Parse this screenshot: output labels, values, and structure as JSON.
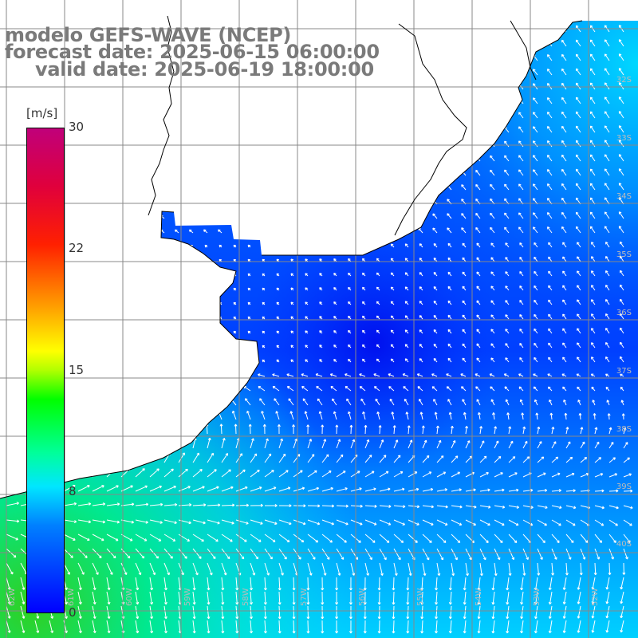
{
  "title": {
    "line1": "modelo GEFS-WAVE (NCEP)",
    "line2": "forecast date: 2025-06-15 06:00:00",
    "line3": "valid date: 2025-06-19 18:00:00"
  },
  "colorbar": {
    "unit": "[m/s]",
    "ticks": [
      "30",
      "22",
      "15",
      "8",
      "0"
    ],
    "tick_values": [
      30,
      22,
      15,
      8,
      0
    ],
    "range": [
      0,
      30
    ],
    "colors": [
      "#0000ff",
      "#0080ff",
      "#00e6ff",
      "#00ff9a",
      "#00ff00",
      "#ffff00",
      "#ffa000",
      "#ff2000",
      "#c0007a"
    ]
  },
  "lat_labels": [
    "32S",
    "33S",
    "34S",
    "35S",
    "36S",
    "37S",
    "38S",
    "39S",
    "40S"
  ],
  "lon_labels": [
    "62W",
    "61W",
    "60W",
    "59W",
    "58W",
    "57W",
    "56W",
    "55W",
    "54W",
    "53W",
    "52W"
  ],
  "map": {
    "variable": "wind speed and direction",
    "land_color": "#ffffff",
    "grid_color": "#888888",
    "coast_color": "#000000"
  }
}
